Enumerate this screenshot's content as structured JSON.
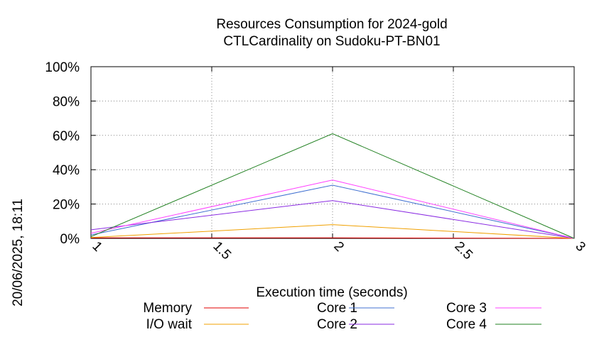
{
  "timestamp": "20/06/2025, 18:11",
  "chart_data": {
    "type": "line",
    "title": "Resources Consumption for 2024-gold",
    "subtitle": "CTLCardinality on Sudoku-PT-BN01",
    "xlabel": "Execution time (seconds)",
    "ylabel": "",
    "xlim": [
      1,
      3
    ],
    "ylim": [
      0,
      100
    ],
    "x_ticks": [
      {
        "value": 1,
        "label": "1"
      },
      {
        "value": 1.5,
        "label": "1.5"
      },
      {
        "value": 2,
        "label": "2"
      },
      {
        "value": 2.5,
        "label": "2.5"
      },
      {
        "value": 3,
        "label": "3"
      }
    ],
    "y_ticks": [
      {
        "value": 0,
        "label": "0%"
      },
      {
        "value": 20,
        "label": "20%"
      },
      {
        "value": 40,
        "label": "40%"
      },
      {
        "value": 60,
        "label": "60%"
      },
      {
        "value": 80,
        "label": "80%"
      },
      {
        "value": 100,
        "label": "100%"
      }
    ],
    "grid": true,
    "legend_position": "bottom",
    "x": [
      1,
      2,
      3
    ],
    "series": [
      {
        "name": "Memory",
        "color": "#e00000",
        "values": [
          0.3,
          0.3,
          0
        ]
      },
      {
        "name": "I/O wait",
        "color": "#f0a000",
        "values": [
          0.5,
          8,
          0
        ]
      },
      {
        "name": "Core 1",
        "color": "#4070d0",
        "values": [
          2,
          31,
          0
        ]
      },
      {
        "name": "Core 2",
        "color": "#8a2be2",
        "values": [
          5,
          22,
          0
        ]
      },
      {
        "name": "Core 3",
        "color": "#ff40ff",
        "values": [
          3,
          34,
          0
        ]
      },
      {
        "name": "Core 4",
        "color": "#208020",
        "values": [
          1,
          61,
          0
        ]
      }
    ]
  }
}
